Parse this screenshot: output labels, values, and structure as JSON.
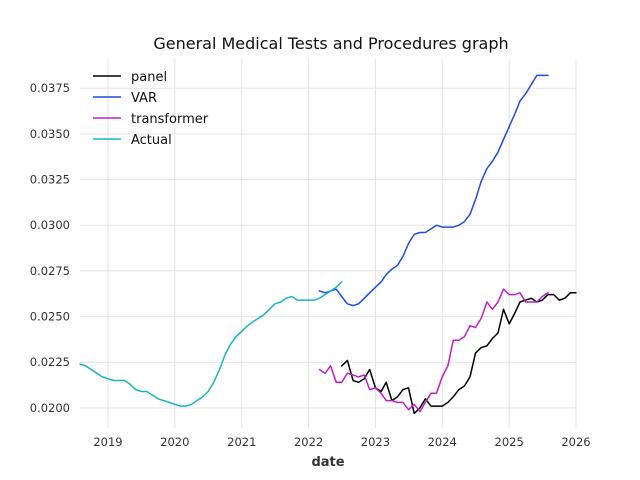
{
  "chart_data": {
    "type": "line",
    "title": "General Medical Tests and Procedures graph",
    "xlabel": "date",
    "ylabel": "",
    "xlim": [
      "2018-08-01",
      "2026-01-01"
    ],
    "ylim": [
      0.0189,
      0.0391
    ],
    "grid": true,
    "legend_position": "top-left",
    "x_ticks": [
      "2019",
      "2020",
      "2021",
      "2022",
      "2023",
      "2024",
      "2025",
      "2026"
    ],
    "y_ticks": [
      "0.0200",
      "0.0225",
      "0.0250",
      "0.0275",
      "0.0300",
      "0.0325",
      "0.0350",
      "0.0375"
    ],
    "series": [
      {
        "name": "panel",
        "color": "#000000",
        "x": [
          "2022-07-01",
          "2022-08-01",
          "2022-09-01",
          "2022-10-01",
          "2022-11-01",
          "2022-12-01",
          "2023-01-01",
          "2023-02-01",
          "2023-03-01",
          "2023-04-01",
          "2023-05-01",
          "2023-06-01",
          "2023-07-01",
          "2023-08-01",
          "2023-09-01",
          "2023-10-01",
          "2023-11-01",
          "2023-12-01",
          "2024-01-01",
          "2024-02-01",
          "2024-03-01",
          "2024-04-01",
          "2024-05-01",
          "2024-06-01",
          "2024-07-01",
          "2024-08-01",
          "2024-09-01",
          "2024-10-01",
          "2024-11-01",
          "2024-12-01",
          "2025-01-01",
          "2025-02-01",
          "2025-03-01",
          "2025-04-01",
          "2025-05-01",
          "2025-06-01",
          "2025-07-01",
          "2025-08-01",
          "2025-09-01",
          "2025-10-01",
          "2025-11-01",
          "2025-12-01",
          "2026-01-01"
        ],
        "y": [
          0.0223,
          0.0226,
          0.0215,
          0.0214,
          0.0216,
          0.0221,
          0.0211,
          0.0209,
          0.0214,
          0.0204,
          0.0206,
          0.021,
          0.0211,
          0.0197,
          0.02,
          0.0205,
          0.0201,
          0.0201,
          0.0201,
          0.0203,
          0.0206,
          0.021,
          0.0212,
          0.0217,
          0.023,
          0.0233,
          0.0234,
          0.0238,
          0.0241,
          0.0254,
          0.0246,
          0.0252,
          0.0258,
          0.0259,
          0.026,
          0.0258,
          0.0259,
          0.0262,
          0.0262,
          0.0259,
          0.026,
          0.0263,
          0.0263
        ]
      },
      {
        "name": "VAR",
        "color": "#1f4ee0",
        "x": [
          "2022-03-01",
          "2022-04-01",
          "2022-05-01",
          "2022-06-01",
          "2022-07-01",
          "2022-08-01",
          "2022-09-01",
          "2022-10-01",
          "2022-11-01",
          "2022-12-01",
          "2023-01-01",
          "2023-02-01",
          "2023-03-01",
          "2023-04-01",
          "2023-05-01",
          "2023-06-01",
          "2023-07-01",
          "2023-08-01",
          "2023-09-01",
          "2023-10-01",
          "2023-11-01",
          "2023-12-01",
          "2024-01-01",
          "2024-02-01",
          "2024-03-01",
          "2024-04-01",
          "2024-05-01",
          "2024-06-01",
          "2024-07-01",
          "2024-08-01",
          "2024-09-01",
          "2024-10-01",
          "2024-11-01",
          "2024-12-01",
          "2025-01-01",
          "2025-02-01",
          "2025-03-01",
          "2025-04-01",
          "2025-05-01",
          "2025-06-01",
          "2025-07-01",
          "2025-08-01"
        ],
        "y": [
          0.0264,
          0.0263,
          0.0264,
          0.0265,
          0.0261,
          0.0257,
          0.0256,
          0.0257,
          0.026,
          0.0263,
          0.0266,
          0.0269,
          0.0273,
          0.0276,
          0.0278,
          0.0283,
          0.029,
          0.0295,
          0.0296,
          0.0296,
          0.0298,
          0.03,
          0.0299,
          0.0299,
          0.0299,
          0.03,
          0.0302,
          0.0306,
          0.0314,
          0.0324,
          0.0331,
          0.0335,
          0.034,
          0.0347,
          0.0354,
          0.0361,
          0.0368,
          0.0372,
          0.0377,
          0.0382,
          0.0382,
          0.0382
        ]
      },
      {
        "name": "transformer",
        "color": "#c020c8",
        "x": [
          "2022-03-01",
          "2022-04-01",
          "2022-05-01",
          "2022-06-01",
          "2022-07-01",
          "2022-08-01",
          "2022-09-01",
          "2022-10-01",
          "2022-11-01",
          "2022-12-01",
          "2023-01-01",
          "2023-02-01",
          "2023-03-01",
          "2023-04-01",
          "2023-05-01",
          "2023-06-01",
          "2023-07-01",
          "2023-08-01",
          "2023-09-01",
          "2023-10-01",
          "2023-11-01",
          "2023-12-01",
          "2024-01-01",
          "2024-02-01",
          "2024-03-01",
          "2024-04-01",
          "2024-05-01",
          "2024-06-01",
          "2024-07-01",
          "2024-08-01",
          "2024-09-01",
          "2024-10-01",
          "2024-11-01",
          "2024-12-01",
          "2025-01-01",
          "2025-02-01",
          "2025-03-01",
          "2025-04-01",
          "2025-05-01",
          "2025-06-01",
          "2025-07-01",
          "2025-08-01"
        ],
        "y": [
          0.0221,
          0.0219,
          0.0223,
          0.0214,
          0.0214,
          0.0219,
          0.0218,
          0.0217,
          0.0218,
          0.021,
          0.0211,
          0.0208,
          0.0204,
          0.0204,
          0.0203,
          0.0203,
          0.0199,
          0.0202,
          0.0198,
          0.0203,
          0.0208,
          0.0208,
          0.0217,
          0.0223,
          0.0237,
          0.0237,
          0.0239,
          0.0245,
          0.0244,
          0.0249,
          0.0258,
          0.0254,
          0.0258,
          0.0265,
          0.0262,
          0.0262,
          0.0263,
          0.0258,
          0.0258,
          0.0258,
          0.0261,
          0.0263
        ]
      },
      {
        "name": "Actual",
        "color": "#17b5c0",
        "x": [
          "2018-08-01",
          "2018-09-01",
          "2018-10-01",
          "2018-11-01",
          "2018-12-01",
          "2019-01-01",
          "2019-02-01",
          "2019-03-01",
          "2019-04-01",
          "2019-05-01",
          "2019-06-01",
          "2019-07-01",
          "2019-08-01",
          "2019-09-01",
          "2019-10-01",
          "2019-11-01",
          "2019-12-01",
          "2020-01-01",
          "2020-02-01",
          "2020-03-01",
          "2020-04-01",
          "2020-05-01",
          "2020-06-01",
          "2020-07-01",
          "2020-08-01",
          "2020-09-01",
          "2020-10-01",
          "2020-11-01",
          "2020-12-01",
          "2021-01-01",
          "2021-02-01",
          "2021-03-01",
          "2021-04-01",
          "2021-05-01",
          "2021-06-01",
          "2021-07-01",
          "2021-08-01",
          "2021-09-01",
          "2021-10-01",
          "2021-11-01",
          "2021-12-01",
          "2022-01-01",
          "2022-02-01",
          "2022-03-01",
          "2022-04-01",
          "2022-05-01",
          "2022-06-01",
          "2022-07-01"
        ],
        "y": [
          0.0224,
          0.0223,
          0.0221,
          0.0219,
          0.0217,
          0.0216,
          0.0215,
          0.0215,
          0.0215,
          0.0213,
          0.021,
          0.0209,
          0.0209,
          0.0207,
          0.0205,
          0.0204,
          0.0203,
          0.0202,
          0.0201,
          0.0201,
          0.0202,
          0.0204,
          0.0206,
          0.0209,
          0.0214,
          0.0221,
          0.0229,
          0.0235,
          0.0239,
          0.0242,
          0.0245,
          0.0247,
          0.0249,
          0.0251,
          0.0254,
          0.0257,
          0.0258,
          0.026,
          0.0261,
          0.0259,
          0.0259,
          0.0259,
          0.0259,
          0.026,
          0.0262,
          0.0264,
          0.0266,
          0.0269
        ]
      }
    ]
  }
}
